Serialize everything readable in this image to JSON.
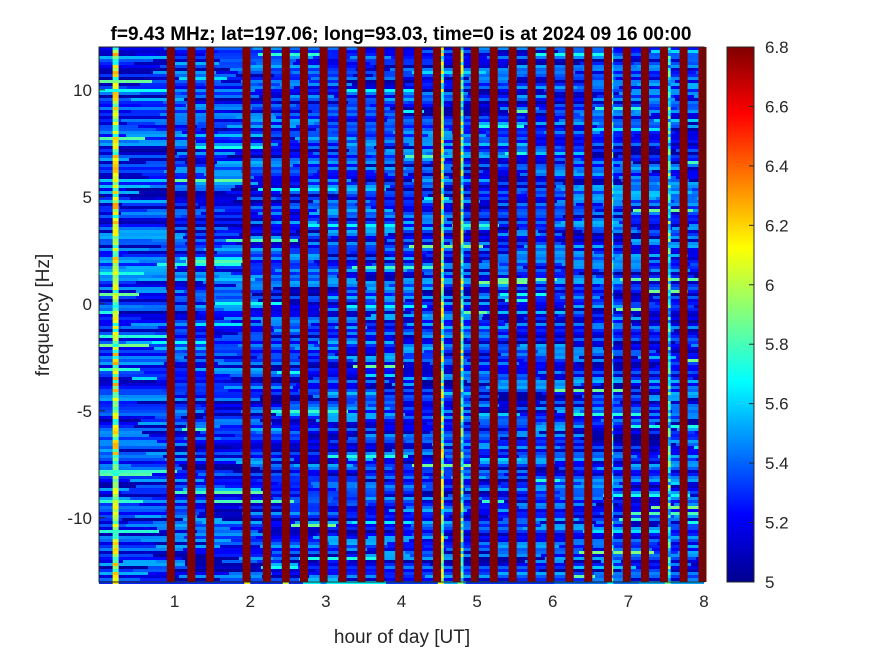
{
  "chart_data": {
    "type": "heatmap",
    "title": "f=9.43 MHz;  lat=197.06; long=93.03, time=0 is at 2024 09 16 00:00",
    "xlabel": "hour of day [UT]",
    "ylabel": "frequency [Hz]",
    "xlim": [
      0,
      8.0
    ],
    "ylim": [
      -13,
      12
    ],
    "xticks": [
      1,
      2,
      3,
      4,
      5,
      6,
      7,
      8
    ],
    "xtick_labels": [
      "1",
      "2",
      "3",
      "4",
      "5",
      "6",
      "7",
      "8"
    ],
    "yticks": [
      -10,
      -5,
      0,
      5,
      10
    ],
    "ytick_labels": [
      "-10",
      "-5",
      "0",
      "5",
      "10"
    ],
    "colorbar": {
      "range": [
        5,
        6.8
      ],
      "ticks": [
        5,
        5.2,
        5.4,
        5.6,
        5.8,
        6,
        6.2,
        6.4,
        6.6,
        6.8
      ],
      "tick_labels": [
        "5",
        "5.2",
        "5.4",
        "5.6",
        "5.8",
        "6",
        "6.2",
        "6.4",
        "6.6",
        "6.8"
      ],
      "colormap": "jet"
    },
    "background_level": 5.3,
    "saturated_columns_hours": [
      0.95,
      1.22,
      1.47,
      1.95,
      2.22,
      2.47,
      2.71,
      2.97,
      3.22,
      3.47,
      3.72,
      3.97,
      4.22,
      4.47,
      4.73,
      4.97,
      5.22,
      5.47,
      5.72,
      5.97,
      6.22,
      6.47,
      6.73,
      6.98,
      7.22,
      7.47,
      7.73,
      7.98
    ],
    "enhanced_columns": [
      {
        "x": 0.22,
        "peak": 6.3
      },
      {
        "x": 1.96,
        "peak": 6.3
      },
      {
        "x": 2.47,
        "peak": 6.1
      },
      {
        "x": 2.97,
        "peak": 6.0
      },
      {
        "x": 4.52,
        "peak": 6.2
      },
      {
        "x": 4.78,
        "peak": 6.1
      },
      {
        "x": 6.76,
        "peak": 6.0
      },
      {
        "x": 7.52,
        "peak": 6.0
      }
    ]
  }
}
